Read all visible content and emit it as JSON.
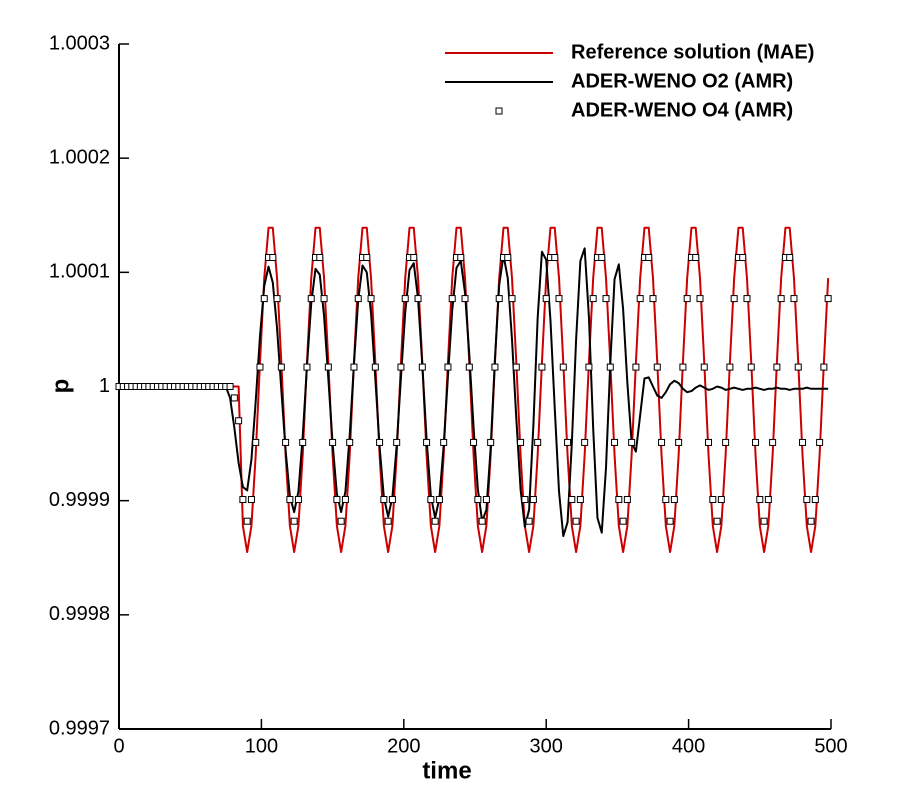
{
  "chart_data": {
    "type": "line",
    "xlabel": "time",
    "ylabel": "p",
    "xlim": [
      0,
      500
    ],
    "ylim": [
      0.9997,
      1.0003
    ],
    "xticks": [
      0,
      100,
      200,
      300,
      400,
      500
    ],
    "yticks": [
      0.9997,
      0.9998,
      0.9999,
      1,
      1.0001,
      1.0002,
      1.0003
    ],
    "legend": "upper right",
    "x": [
      0,
      3,
      6,
      9,
      12,
      15,
      18,
      21,
      24,
      27,
      30,
      33,
      36,
      39,
      42,
      45,
      48,
      51,
      54,
      57,
      60,
      63,
      66,
      69,
      72,
      75,
      78,
      81,
      84,
      87,
      90,
      93,
      96,
      99,
      102,
      105,
      108,
      111,
      114,
      117,
      120,
      123,
      126,
      129,
      132,
      135,
      138,
      141,
      144,
      147,
      150,
      153,
      156,
      159,
      162,
      165,
      168,
      171,
      174,
      177,
      180,
      183,
      186,
      189,
      192,
      195,
      198,
      201,
      204,
      207,
      210,
      213,
      216,
      219,
      222,
      225,
      228,
      231,
      234,
      237,
      240,
      243,
      246,
      249,
      252,
      255,
      258,
      261,
      264,
      267,
      270,
      273,
      276,
      279,
      282,
      285,
      288,
      291,
      294,
      297,
      300,
      303,
      306,
      309,
      312,
      315,
      318,
      321,
      324,
      327,
      330,
      333,
      336,
      339,
      342,
      345,
      348,
      351,
      354,
      357,
      360,
      363,
      366,
      369,
      372,
      375,
      378,
      381,
      384,
      387,
      390,
      393,
      396,
      399,
      402,
      405,
      408,
      411,
      414,
      417,
      420,
      423,
      426,
      429,
      432,
      435,
      438,
      441,
      444,
      447,
      450,
      453,
      456,
      459,
      462,
      465,
      468,
      471,
      474,
      477,
      480,
      483,
      486,
      489,
      492,
      495,
      498
    ],
    "series": [
      {
        "name": "Reference solution (MAE)",
        "color": "#cc0000",
        "mode": "line",
        "values": [
          1,
          1,
          1,
          1,
          1,
          1,
          1,
          1,
          1,
          1,
          1,
          1,
          1,
          1,
          1,
          1,
          1,
          1,
          1,
          1,
          1,
          1,
          1,
          1,
          1,
          1,
          1,
          1,
          1,
          0.999878,
          0.999855,
          0.999878,
          0.99994,
          1.000021,
          1.000095,
          1.000139,
          1.000139,
          1.000095,
          1.000021,
          0.99994,
          0.999878,
          0.999855,
          0.999878,
          0.99994,
          1.000021,
          1.000095,
          1.000139,
          1.000139,
          1.000095,
          1.000021,
          0.99994,
          0.999878,
          0.999855,
          0.999878,
          0.99994,
          1.000021,
          1.000095,
          1.000139,
          1.000139,
          1.000095,
          1.000021,
          0.99994,
          0.999878,
          0.999855,
          0.999878,
          0.99994,
          1.000021,
          1.000095,
          1.000139,
          1.000139,
          1.000095,
          1.000021,
          0.99994,
          0.999878,
          0.999855,
          0.999878,
          0.99994,
          1.000021,
          1.000095,
          1.000139,
          1.000139,
          1.000095,
          1.000021,
          0.99994,
          0.999878,
          0.999855,
          0.999878,
          0.99994,
          1.000021,
          1.000095,
          1.000139,
          1.000139,
          1.000095,
          1.000021,
          0.99994,
          0.999878,
          0.999855,
          0.999878,
          0.99994,
          1.000021,
          1.000095,
          1.000139,
          1.000139,
          1.000095,
          1.000021,
          0.99994,
          0.999878,
          0.999855,
          0.999878,
          0.99994,
          1.000021,
          1.000095,
          1.000139,
          1.000139,
          1.000095,
          1.000021,
          0.99994,
          0.999878,
          0.999855,
          0.999878,
          0.99994,
          1.000021,
          1.000095,
          1.000139,
          1.000139,
          1.000095,
          1.000021,
          0.99994,
          0.999878,
          0.999855,
          0.999878,
          0.99994,
          1.000021,
          1.000095,
          1.000139,
          1.000139,
          1.000095,
          1.000021,
          0.99994,
          0.999878,
          0.999855,
          0.999878,
          0.99994,
          1.000021,
          1.000095,
          1.000139,
          1.000139,
          1.000095,
          1.000021,
          0.99994,
          0.999878,
          0.999855,
          0.999878,
          0.99994,
          1.000021,
          1.000095,
          1.000139,
          1.000139,
          1.000095,
          1.000021,
          0.99994,
          0.999878,
          0.999855,
          0.999878,
          0.99994,
          1.000021,
          1.000095
        ]
      },
      {
        "name": "ADER-WENO O2 (AMR)",
        "color": "#000000",
        "mode": "line",
        "values": [
          1,
          1,
          1,
          1,
          1,
          1,
          1,
          1,
          1,
          1,
          1,
          1,
          1,
          1,
          1,
          1,
          1,
          1,
          1,
          1,
          1,
          1,
          1,
          1,
          1,
          1,
          0.99999,
          0.999964,
          0.999933,
          0.999912,
          0.999909,
          0.999936,
          0.999987,
          1.000044,
          1.000088,
          1.000105,
          1.000091,
          1.000051,
          0.999997,
          0.999944,
          0.999904,
          0.99989,
          0.999908,
          0.999956,
          1.000018,
          1.000073,
          1.000103,
          1.000098,
          1.000062,
          1.000007,
          0.99995,
          0.999906,
          0.99989,
          0.999908,
          0.999957,
          1.00002,
          1.000076,
          1.000106,
          1.0001,
          1.000064,
          1.000007,
          0.999947,
          0.999903,
          0.999886,
          0.999903,
          0.999948,
          1.000008,
          1.000065,
          1.000102,
          1.000108,
          1.000077,
          1.000019,
          0.999954,
          0.999904,
          0.999885,
          0.999902,
          0.999948,
          1.000009,
          1.000067,
          1.000104,
          1.00011,
          1.000082,
          1.000028,
          0.999964,
          0.99991,
          0.999882,
          0.999892,
          0.999946,
          1.000024,
          1.000089,
          1.000115,
          1.000095,
          1.000041,
          0.999972,
          0.99991,
          0.999877,
          0.999892,
          0.999966,
          1.00006,
          1.000118,
          1.000111,
          1.000058,
          0.999981,
          0.999908,
          0.999869,
          0.999881,
          0.99995,
          1.000041,
          1.00011,
          1.000121,
          1.000061,
          0.999963,
          0.999885,
          0.999872,
          0.999929,
          1.00002,
          1.000094,
          1.000107,
          1.000068,
          1.000003,
          0.999951,
          0.999943,
          0.999975,
          1.000007,
          1.000008,
          1,
          0.999992,
          0.99999,
          0.999995,
          1.000002,
          1.000005,
          1.000003,
          0.999998,
          0.999995,
          0.999996,
          0.999999,
          1.000001,
          0.999999,
          0.999997,
          0.999998,
          1,
          0.999999,
          0.999997,
          0.999998,
          0.999999,
          0.999998,
          0.999997,
          0.999998,
          0.999998,
          0.999999,
          0.999998,
          0.999997,
          0.999998,
          0.999998,
          0.999999,
          0.999998,
          0.999998,
          0.999997,
          0.999998,
          0.999998,
          0.999998,
          0.999999,
          0.999998,
          0.999998,
          0.999998,
          0.999998,
          0.999998
        ]
      },
      {
        "name": "ADER-WENO O4 (AMR)",
        "color": "#000000",
        "mode": "marker",
        "values": [
          1,
          1,
          1,
          1,
          1,
          1,
          1,
          1,
          1,
          1,
          1,
          1,
          1,
          1,
          1,
          1,
          1,
          1,
          1,
          1,
          1,
          1,
          1,
          1,
          1,
          1,
          1,
          0.99999,
          0.99997,
          0.999901,
          0.999882,
          0.999901,
          0.999951,
          1.000017,
          1.000077,
          1.000113,
          1.000113,
          1.000077,
          1.000017,
          0.999951,
          0.999901,
          0.999882,
          0.999901,
          0.999951,
          1.000017,
          1.000077,
          1.000113,
          1.000113,
          1.000077,
          1.000017,
          0.999951,
          0.999901,
          0.999882,
          0.999901,
          0.999951,
          1.000017,
          1.000077,
          1.000113,
          1.000113,
          1.000077,
          1.000017,
          0.999951,
          0.999901,
          0.999882,
          0.999901,
          0.999951,
          1.000017,
          1.000077,
          1.000113,
          1.000113,
          1.000077,
          1.000017,
          0.999951,
          0.999901,
          0.999882,
          0.999901,
          0.999951,
          1.000017,
          1.000077,
          1.000113,
          1.000113,
          1.000077,
          1.000017,
          0.999951,
          0.999901,
          0.999882,
          0.999901,
          0.999951,
          1.000017,
          1.000077,
          1.000113,
          1.000113,
          1.000077,
          1.000017,
          0.999951,
          0.999901,
          0.999882,
          0.999901,
          0.999951,
          1.000017,
          1.000077,
          1.000113,
          1.000113,
          1.000077,
          1.000017,
          0.999951,
          0.999901,
          0.999882,
          0.999901,
          0.999951,
          1.000017,
          1.000077,
          1.000113,
          1.000113,
          1.000077,
          1.000017,
          0.999951,
          0.999901,
          0.999882,
          0.999901,
          0.999951,
          1.000017,
          1.000077,
          1.000113,
          1.000113,
          1.000077,
          1.000017,
          0.999951,
          0.999901,
          0.999882,
          0.999901,
          0.999951,
          1.000017,
          1.000077,
          1.000113,
          1.000113,
          1.000077,
          1.000017,
          0.999951,
          0.999901,
          0.999882,
          0.999901,
          0.999951,
          1.000017,
          1.000077,
          1.000113,
          1.000113,
          1.000077,
          1.000017,
          0.999951,
          0.999901,
          0.999882,
          0.999901,
          0.999951,
          1.000017,
          1.000077,
          1.000113,
          1.000113,
          1.000077,
          1.000017,
          0.999951,
          0.999901,
          0.999882,
          0.999901,
          0.999951,
          1.000017,
          1.000077
        ]
      }
    ]
  }
}
